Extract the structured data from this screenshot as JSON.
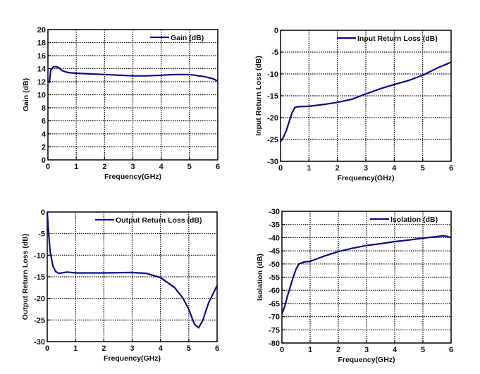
{
  "chart_data": [
    {
      "type": "line",
      "title": "",
      "xlabel": "Frequency(GHz)",
      "ylabel": "Gain  (dB)",
      "xlim": [
        0,
        6
      ],
      "ylim": [
        0,
        20
      ],
      "xticks": [
        "0",
        "1",
        "2",
        "3",
        "4",
        "5",
        "6"
      ],
      "yticks": [
        "0",
        "2",
        "4",
        "6",
        "8",
        "10",
        "12",
        "14",
        "16",
        "18",
        "20"
      ],
      "grid": true,
      "legend_position": "top-right",
      "series": [
        {
          "name": "Gain  (dB)",
          "color": "#0b0b8a",
          "x": [
            0.05,
            0.1,
            0.2,
            0.3,
            0.4,
            0.5,
            0.7,
            1,
            2,
            3,
            3.5,
            4,
            4.5,
            5,
            5.5,
            5.8,
            6
          ],
          "y": [
            11.8,
            13.8,
            14.3,
            14.3,
            14.1,
            13.7,
            13.4,
            13.3,
            13.1,
            12.9,
            12.9,
            13.0,
            13.1,
            13.1,
            12.8,
            12.5,
            12.1
          ]
        }
      ]
    },
    {
      "type": "line",
      "title": "",
      "xlabel": "Frequency(GHz)",
      "ylabel": "Input Return Loss  (dB)",
      "xlim": [
        0,
        6
      ],
      "ylim": [
        -30,
        0
      ],
      "xticks": [
        "0",
        "1",
        "2",
        "3",
        "4",
        "5",
        "6"
      ],
      "yticks": [
        "-30",
        "-25",
        "-20",
        "-15",
        "-10",
        "-5",
        "0"
      ],
      "grid": true,
      "legend_position": "top-right",
      "series": [
        {
          "name": "Input Return Loss  (dB)",
          "color": "#0b0b8a",
          "x": [
            0,
            0.1,
            0.2,
            0.3,
            0.4,
            0.5,
            0.6,
            1,
            1.5,
            2,
            2.5,
            3,
            3.5,
            4,
            4.5,
            5,
            5.5,
            6
          ],
          "y": [
            -25.5,
            -24.5,
            -23,
            -21,
            -19,
            -17.7,
            -17.5,
            -17.4,
            -17,
            -16.5,
            -15.8,
            -14.6,
            -13.4,
            -12.4,
            -11.5,
            -10.3,
            -8.7,
            -7.3
          ]
        }
      ]
    },
    {
      "type": "line",
      "title": "",
      "xlabel": "Frequency(GHz)",
      "ylabel": "Output Return Loss  (dB)",
      "xlim": [
        0,
        6
      ],
      "ylim": [
        -30,
        0
      ],
      "xticks": [
        "0",
        "1",
        "2",
        "3",
        "4",
        "5",
        "6"
      ],
      "yticks": [
        "-30",
        "-25",
        "-20",
        "-15",
        "-10",
        "-5",
        "0"
      ],
      "grid": true,
      "legend_position": "top-right",
      "series": [
        {
          "name": "Output Return Loss  (dB)",
          "color": "#0b0b8a",
          "x": [
            0,
            0.05,
            0.1,
            0.2,
            0.3,
            0.4,
            0.5,
            0.7,
            1,
            2,
            3,
            3.5,
            4,
            4.5,
            4.8,
            5,
            5.2,
            5.35,
            5.5,
            5.7,
            6
          ],
          "y": [
            0,
            -5,
            -9,
            -12.5,
            -13.8,
            -14.2,
            -14.1,
            -13.9,
            -14.1,
            -14.1,
            -14,
            -14.2,
            -15.2,
            -17.5,
            -20,
            -22.5,
            -26,
            -26.8,
            -25,
            -21,
            -17
          ]
        }
      ]
    },
    {
      "type": "line",
      "title": "",
      "xlabel": "Frequency(GHz)",
      "ylabel": "Isolation  (dB)",
      "xlim": [
        0,
        6
      ],
      "ylim": [
        -80,
        -30
      ],
      "xticks": [
        "0",
        "1",
        "2",
        "3",
        "4",
        "5",
        "6"
      ],
      "yticks": [
        "-80",
        "-75",
        "-70",
        "-65",
        "-60",
        "-55",
        "-50",
        "-45",
        "-40",
        "-35",
        "-30"
      ],
      "grid": true,
      "legend_position": "top-right",
      "series": [
        {
          "name": "Isolation  (dB)",
          "color": "#0b0b8a",
          "x": [
            0,
            0.1,
            0.2,
            0.3,
            0.4,
            0.5,
            0.6,
            0.8,
            1,
            1.5,
            2,
            2.5,
            3,
            3.5,
            4,
            4.5,
            5,
            5.5,
            5.7,
            5.85,
            6
          ],
          "y": [
            -69,
            -66,
            -62,
            -58.5,
            -55,
            -52,
            -50,
            -49.2,
            -49,
            -47,
            -45.3,
            -44,
            -43,
            -42.3,
            -41.5,
            -40.9,
            -40.2,
            -39.6,
            -39.3,
            -39.5,
            -40
          ]
        }
      ]
    }
  ]
}
